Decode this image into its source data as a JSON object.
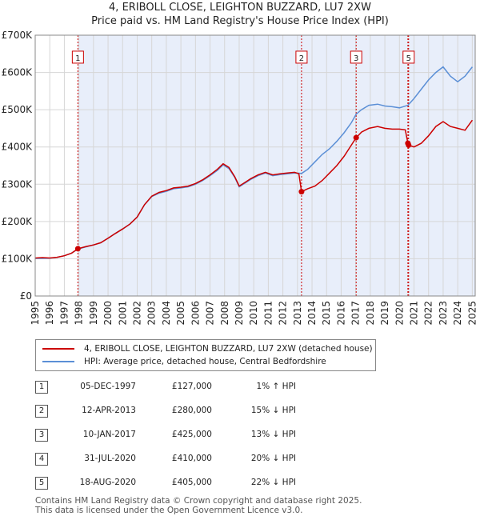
{
  "header": {
    "title": "4, ERIBOLL CLOSE, LEIGHTON BUZZARD, LU7 2XW",
    "subtitle": "Price paid vs. HM Land Registry's House Price Index (HPI)"
  },
  "colors": {
    "price_line": "#cc0000",
    "hpi_line": "#5b8fd6",
    "shade": "#e8eefa",
    "marker": "#cc0000"
  },
  "legend": {
    "price_label": "4, ERIBOLL CLOSE, LEIGHTON BUZZARD, LU7 2XW (detached house)",
    "hpi_label": "HPI: Average price, detached house, Central Bedfordshire"
  },
  "sales": [
    {
      "num": "1",
      "date": "05-DEC-1997",
      "price": "£127,000",
      "hpi": "1% ↑ HPI"
    },
    {
      "num": "2",
      "date": "12-APR-2013",
      "price": "£280,000",
      "hpi": "15% ↓ HPI"
    },
    {
      "num": "3",
      "date": "10-JAN-2017",
      "price": "£425,000",
      "hpi": "13% ↓ HPI"
    },
    {
      "num": "4",
      "date": "31-JUL-2020",
      "price": "£410,000",
      "hpi": "20% ↓ HPI"
    },
    {
      "num": "5",
      "date": "18-AUG-2020",
      "price": "£405,000",
      "hpi": "22% ↓ HPI"
    }
  ],
  "footer": {
    "line1": "Contains HM Land Registry data © Crown copyright and database right 2025.",
    "line2": "This data is licensed under the Open Government Licence v3.0."
  },
  "chart_data": {
    "type": "line",
    "xlim": [
      1995.0,
      2025.2
    ],
    "ylim": [
      0,
      700000
    ],
    "ytick_values": [
      0,
      100000,
      200000,
      300000,
      400000,
      500000,
      600000,
      700000
    ],
    "ytick_labels": [
      "£0",
      "£100K",
      "£200K",
      "£300K",
      "£400K",
      "£500K",
      "£600K",
      "£700K"
    ],
    "xtick_values": [
      1995,
      1996,
      1997,
      1998,
      1999,
      2000,
      2001,
      2002,
      2003,
      2004,
      2005,
      2006,
      2007,
      2008,
      2009,
      2010,
      2011,
      2012,
      2013,
      2014,
      2015,
      2016,
      2017,
      2018,
      2019,
      2020,
      2021,
      2022,
      2023,
      2024,
      2025
    ],
    "xtick_labels": [
      "1995",
      "1996",
      "1997",
      "1998",
      "1999",
      "2000",
      "2001",
      "2002",
      "2003",
      "2004",
      "2005",
      "2006",
      "2007",
      "2008",
      "2009",
      "2010",
      "2011",
      "2012",
      "2013",
      "2014",
      "2015",
      "2016",
      "2017",
      "2018",
      "2019",
      "2020",
      "2021",
      "2022",
      "2023",
      "2024",
      "2025"
    ],
    "grid": true,
    "shaded_span": [
      1997.93,
      2025.2
    ],
    "sale_markers": [
      {
        "label": "1",
        "x": 1997.93,
        "y": 127000,
        "box_y": 640000
      },
      {
        "label": "2",
        "x": 2013.28,
        "y": 280000,
        "box_y": 640000
      },
      {
        "label": "3",
        "x": 2017.03,
        "y": 425000,
        "box_y": 640000
      },
      {
        "label": "4",
        "x": 2020.58,
        "y": 410000,
        "box_y": null
      },
      {
        "label": "5",
        "x": 2020.63,
        "y": 405000,
        "box_y": 640000
      }
    ],
    "series": [
      {
        "name": "4, ERIBOLL CLOSE, LEIGHTON BUZZARD, LU7 2XW (detached house)",
        "points": [
          [
            1995.0,
            102000
          ],
          [
            1995.5,
            103000
          ],
          [
            1996.0,
            102000
          ],
          [
            1996.5,
            104000
          ],
          [
            1997.0,
            108000
          ],
          [
            1997.5,
            115000
          ],
          [
            1997.93,
            127000
          ],
          [
            1998.5,
            133000
          ],
          [
            1999.0,
            137000
          ],
          [
            1999.5,
            143000
          ],
          [
            2000.0,
            155000
          ],
          [
            2000.5,
            168000
          ],
          [
            2001.0,
            180000
          ],
          [
            2001.5,
            193000
          ],
          [
            2002.0,
            212000
          ],
          [
            2002.5,
            245000
          ],
          [
            2003.0,
            268000
          ],
          [
            2003.5,
            278000
          ],
          [
            2004.0,
            283000
          ],
          [
            2004.5,
            290000
          ],
          [
            2005.0,
            292000
          ],
          [
            2005.5,
            295000
          ],
          [
            2006.0,
            302000
          ],
          [
            2006.5,
            312000
          ],
          [
            2007.0,
            325000
          ],
          [
            2007.5,
            340000
          ],
          [
            2007.9,
            355000
          ],
          [
            2008.3,
            345000
          ],
          [
            2008.7,
            320000
          ],
          [
            2009.0,
            295000
          ],
          [
            2009.4,
            305000
          ],
          [
            2009.8,
            315000
          ],
          [
            2010.3,
            325000
          ],
          [
            2010.8,
            332000
          ],
          [
            2011.3,
            325000
          ],
          [
            2011.8,
            328000
          ],
          [
            2012.3,
            330000
          ],
          [
            2012.8,
            332000
          ],
          [
            2013.1,
            328000
          ],
          [
            2013.28,
            280000
          ],
          [
            2013.7,
            288000
          ],
          [
            2014.2,
            295000
          ],
          [
            2014.7,
            310000
          ],
          [
            2015.2,
            330000
          ],
          [
            2015.7,
            350000
          ],
          [
            2016.2,
            375000
          ],
          [
            2016.7,
            405000
          ],
          [
            2017.03,
            425000
          ],
          [
            2017.4,
            440000
          ],
          [
            2017.9,
            450000
          ],
          [
            2018.5,
            455000
          ],
          [
            2019.0,
            450000
          ],
          [
            2019.5,
            448000
          ],
          [
            2020.0,
            448000
          ],
          [
            2020.4,
            446000
          ],
          [
            2020.58,
            410000
          ],
          [
            2020.63,
            405000
          ],
          [
            2021.0,
            400000
          ],
          [
            2021.5,
            410000
          ],
          [
            2022.0,
            430000
          ],
          [
            2022.5,
            455000
          ],
          [
            2023.0,
            468000
          ],
          [
            2023.5,
            455000
          ],
          [
            2024.0,
            450000
          ],
          [
            2024.5,
            445000
          ],
          [
            2025.0,
            472000
          ]
        ]
      },
      {
        "name": "HPI: Average price, detached house, Central Bedfordshire",
        "points": [
          [
            1995.0,
            101000
          ],
          [
            1995.5,
            101000
          ],
          [
            1996.0,
            101500
          ],
          [
            1996.5,
            104000
          ],
          [
            1997.0,
            108000
          ],
          [
            1997.5,
            115000
          ],
          [
            1997.93,
            126000
          ],
          [
            1998.5,
            132000
          ],
          [
            1999.0,
            137000
          ],
          [
            1999.5,
            143000
          ],
          [
            2000.0,
            155000
          ],
          [
            2000.5,
            168000
          ],
          [
            2001.0,
            180000
          ],
          [
            2001.5,
            193000
          ],
          [
            2002.0,
            212000
          ],
          [
            2002.5,
            245000
          ],
          [
            2003.0,
            267000
          ],
          [
            2003.5,
            276000
          ],
          [
            2004.0,
            281000
          ],
          [
            2004.5,
            288000
          ],
          [
            2005.0,
            290000
          ],
          [
            2005.5,
            293000
          ],
          [
            2006.0,
            300000
          ],
          [
            2006.5,
            310000
          ],
          [
            2007.0,
            323000
          ],
          [
            2007.5,
            337000
          ],
          [
            2007.9,
            352000
          ],
          [
            2008.3,
            342000
          ],
          [
            2008.7,
            318000
          ],
          [
            2009.0,
            293000
          ],
          [
            2009.4,
            303000
          ],
          [
            2009.8,
            313000
          ],
          [
            2010.3,
            323000
          ],
          [
            2010.8,
            330000
          ],
          [
            2011.3,
            323000
          ],
          [
            2011.8,
            326000
          ],
          [
            2012.3,
            328000
          ],
          [
            2012.8,
            330000
          ],
          [
            2013.28,
            329000
          ],
          [
            2013.7,
            340000
          ],
          [
            2014.2,
            360000
          ],
          [
            2014.7,
            380000
          ],
          [
            2015.2,
            395000
          ],
          [
            2015.7,
            415000
          ],
          [
            2016.2,
            438000
          ],
          [
            2016.7,
            465000
          ],
          [
            2017.03,
            488000
          ],
          [
            2017.4,
            500000
          ],
          [
            2017.9,
            512000
          ],
          [
            2018.5,
            515000
          ],
          [
            2019.0,
            510000
          ],
          [
            2019.5,
            508000
          ],
          [
            2020.0,
            505000
          ],
          [
            2020.58,
            512000
          ],
          [
            2021.0,
            530000
          ],
          [
            2021.5,
            555000
          ],
          [
            2022.0,
            580000
          ],
          [
            2022.5,
            600000
          ],
          [
            2023.0,
            615000
          ],
          [
            2023.5,
            590000
          ],
          [
            2024.0,
            575000
          ],
          [
            2024.5,
            590000
          ],
          [
            2025.0,
            615000
          ]
        ]
      }
    ]
  }
}
